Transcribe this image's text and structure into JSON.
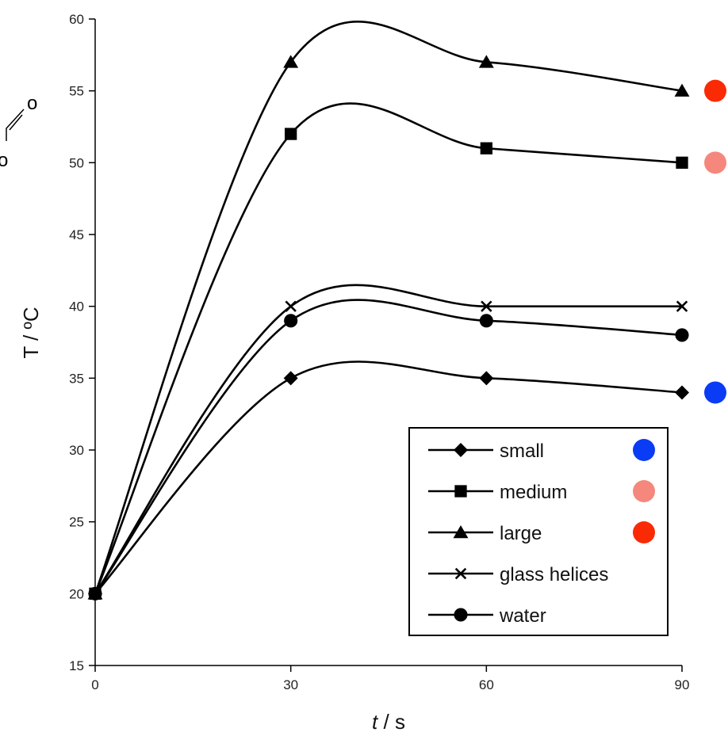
{
  "chart_data": {
    "type": "line",
    "x": [
      0,
      30,
      60,
      90
    ],
    "series": [
      {
        "name": "small",
        "marker": "diamond",
        "indicator_color": "#0a3cf5",
        "values": [
          20,
          35,
          35,
          34
        ]
      },
      {
        "name": "medium",
        "marker": "square",
        "indicator_color": "#f5877c",
        "values": [
          20,
          52,
          51,
          50
        ]
      },
      {
        "name": "large",
        "marker": "triangle",
        "indicator_color": "#fa2a05",
        "values": [
          20,
          57,
          57,
          55
        ]
      },
      {
        "name": "glass helices",
        "marker": "cross",
        "values": [
          20,
          40,
          40,
          40
        ]
      },
      {
        "name": "water",
        "marker": "circle",
        "values": [
          20,
          39,
          39,
          38
        ]
      }
    ],
    "xlabel_italic": "t",
    "xlabel_rest": " / s",
    "ylabel": "T / ºC",
    "xlim": [
      0,
      90
    ],
    "ylim": [
      15,
      60
    ],
    "xticks": [
      0,
      30,
      60,
      90
    ],
    "yticks": [
      15,
      20,
      25,
      30,
      35,
      40,
      45,
      50,
      55,
      60
    ],
    "grid": false,
    "legend_position": "bottom-right",
    "line_color": "#000000",
    "partial_glyphs": [
      "o",
      "o"
    ]
  }
}
